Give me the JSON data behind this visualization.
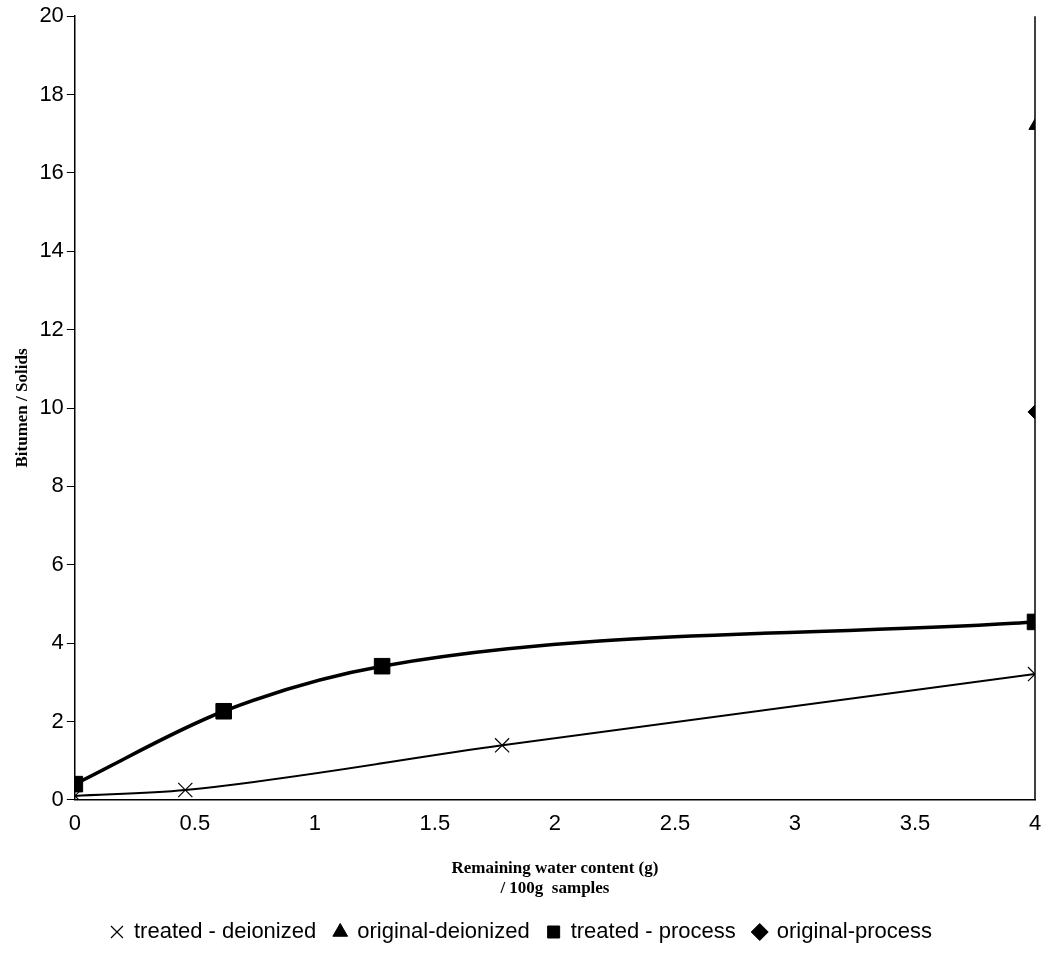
{
  "chart_data": {
    "type": "line",
    "xlabel": "Remaining water content (g)\n/ 100g  samples",
    "ylabel": "Bitumen / Solids",
    "xlim": [
      0,
      4
    ],
    "xticks": [
      0,
      0.5,
      1,
      1.5,
      2,
      2.5,
      3,
      3.5,
      4
    ],
    "ylim": [
      0,
      20
    ],
    "yticks": [
      0,
      2,
      4,
      6,
      8,
      10,
      12,
      14,
      16,
      18,
      20
    ],
    "grid": false,
    "legend": "bottom",
    "series": [
      {
        "name": "original-process",
        "marker": "diamond",
        "color": "#000000",
        "x": [
          4
        ],
        "values": [
          9.9
        ]
      },
      {
        "name": "treated - process",
        "marker": "square",
        "color": "#000000",
        "x": [
          0,
          0.62,
          1.28,
          4
        ],
        "values": [
          0.4,
          2.26,
          3.41,
          4.54
        ]
      },
      {
        "name": "original-deionized",
        "type": "scatter",
        "marker": "triangle",
        "color": "#000000",
        "x": [
          4
        ],
        "values": [
          17.2
        ]
      },
      {
        "name": "treated - deionized",
        "marker": "cross",
        "color": "#000000",
        "x": [
          0,
          0.46,
          1.78,
          4
        ],
        "values": [
          0.1,
          0.25,
          1.39,
          3.21
        ]
      }
    ]
  }
}
